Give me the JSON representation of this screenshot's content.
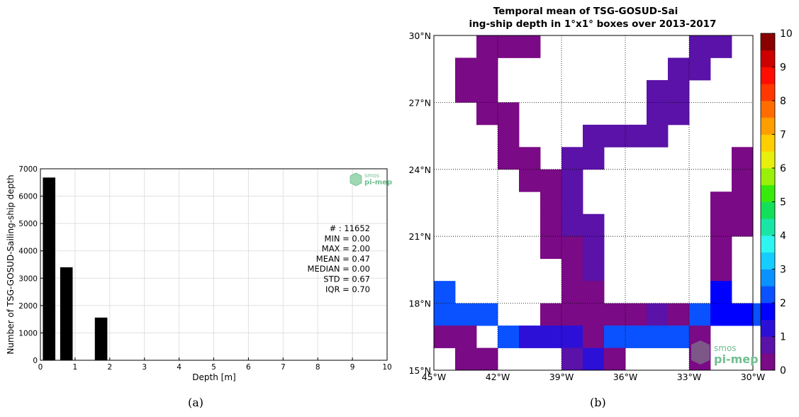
{
  "captions": {
    "a": "(a)",
    "b": "(b)"
  },
  "logo": {
    "line1": "smos",
    "line2": "pi-mep"
  },
  "chart_data": [
    {
      "type": "bar",
      "xlabel": "Depth [m]",
      "ylabel": "Number of TSG-GOSUD-Sailing-ship depth",
      "xlim": [
        0,
        10
      ],
      "ylim": [
        0,
        7000
      ],
      "xticks": [
        0,
        1,
        2,
        3,
        4,
        5,
        6,
        7,
        8,
        9,
        10
      ],
      "yticks": [
        0,
        1000,
        2000,
        3000,
        4000,
        5000,
        6000,
        7000
      ],
      "grid": true,
      "bar_width": 0.36,
      "bars": [
        {
          "x": 0.25,
          "value": 6680
        },
        {
          "x": 0.75,
          "value": 3400
        },
        {
          "x": 1.75,
          "value": 1560
        }
      ],
      "stats": [
        "# : 11652",
        "MIN = 0.00",
        "MAX =  2.00",
        "MEAN = 0.47",
        "MEDIAN = 0.00",
        "STD = 0.67",
        "IQR = 0.70"
      ]
    },
    {
      "type": "heatmap",
      "title": [
        "Temporal mean of TSG-GOSUD-Sai",
        "ing-ship depth in 1°x1° boxes over 2013-2017"
      ],
      "lon_range": [
        -45,
        -30
      ],
      "lat_range": [
        15,
        30
      ],
      "xticks": [
        "45°W",
        "42°W",
        "39°W",
        "36°W",
        "33°W",
        "30°W"
      ],
      "yticks": [
        "15°N",
        "18°N",
        "21°N",
        "24°N",
        "27°N",
        "30°N"
      ],
      "grid": "dotted",
      "colorbar": {
        "min": 0,
        "max": 10,
        "ticks": [
          "0",
          "1",
          "2",
          "3",
          "4",
          "5",
          "6",
          "7",
          "8",
          "9",
          "10"
        ],
        "colors": [
          "#7a0a85",
          "#5a12a8",
          "#2d10d8",
          "#0000ff",
          "#0a52ff",
          "#0a92ff",
          "#16cdff",
          "#2ef5f0",
          "#19e6a6",
          "#13e05a",
          "#38ea0c",
          "#9af00a",
          "#e6f00c",
          "#ffce00",
          "#ff9e00",
          "#ff6d00",
          "#ff3800",
          "#ff0d00",
          "#cc0000",
          "#8a0000"
        ]
      },
      "cells": [
        [
          -43,
          29,
          0.2
        ],
        [
          -42,
          29,
          0.2
        ],
        [
          -41,
          29,
          0.2
        ],
        [
          -33,
          29,
          0.5
        ],
        [
          -32,
          29,
          0.5
        ],
        [
          -44,
          28,
          0.2
        ],
        [
          -43,
          28,
          0.2
        ],
        [
          -34,
          28,
          0.5
        ],
        [
          -33,
          28,
          0.5
        ],
        [
          -44,
          27,
          0.2
        ],
        [
          -43,
          27,
          0.2
        ],
        [
          -35,
          27,
          0.5
        ],
        [
          -34,
          27,
          0.5
        ],
        [
          -43,
          26,
          0.2
        ],
        [
          -42,
          26,
          0.2
        ],
        [
          -35,
          26,
          0.5
        ],
        [
          -34,
          26,
          0.5
        ],
        [
          -42,
          25,
          0.2
        ],
        [
          -38,
          25,
          0.5
        ],
        [
          -37,
          25,
          0.5
        ],
        [
          -36,
          25,
          0.5
        ],
        [
          -35,
          25,
          0.5
        ],
        [
          -42,
          24,
          0.2
        ],
        [
          -41,
          24,
          0.2
        ],
        [
          -39,
          24,
          0.6
        ],
        [
          -38,
          24,
          0.6
        ],
        [
          -31,
          24,
          0.3
        ],
        [
          -41,
          23,
          0.2
        ],
        [
          -40,
          23,
          0.2
        ],
        [
          -39,
          23,
          0.6
        ],
        [
          -31,
          23,
          0.3
        ],
        [
          -40,
          22,
          0.2
        ],
        [
          -39,
          22,
          0.6
        ],
        [
          -32,
          22,
          0.3
        ],
        [
          -31,
          22,
          0.3
        ],
        [
          -40,
          21,
          0.2
        ],
        [
          -39,
          21,
          0.6
        ],
        [
          -38,
          21,
          0.6
        ],
        [
          -32,
          21,
          0.3
        ],
        [
          -31,
          21,
          0.3
        ],
        [
          -40,
          20,
          0.2
        ],
        [
          -39,
          20,
          0.2
        ],
        [
          -38,
          20,
          0.6
        ],
        [
          -32,
          20,
          0.2
        ],
        [
          -39,
          19,
          0.2
        ],
        [
          -38,
          19,
          0.6
        ],
        [
          -32,
          19,
          0.2
        ],
        [
          -39,
          18,
          0.2
        ],
        [
          -38,
          18,
          0.2
        ],
        [
          -32,
          18,
          1.9
        ],
        [
          -45,
          18,
          2.2
        ],
        [
          -45,
          17,
          2.2
        ],
        [
          -44,
          17,
          2.2
        ],
        [
          -43,
          17,
          2.2
        ],
        [
          -40,
          17,
          0.2
        ],
        [
          -39,
          17,
          0.2
        ],
        [
          -38,
          17,
          0.2
        ],
        [
          -37,
          17,
          0.2
        ],
        [
          -36,
          17,
          0.2
        ],
        [
          -35,
          17,
          0.6
        ],
        [
          -34,
          17,
          0.2
        ],
        [
          -33,
          17,
          2.2
        ],
        [
          -32,
          17,
          1.8
        ],
        [
          -31,
          17,
          1.8
        ],
        [
          -30,
          17,
          2.2
        ],
        [
          -45,
          16,
          0.2
        ],
        [
          -44,
          16,
          0.2
        ],
        [
          -42,
          16,
          2.2
        ],
        [
          -41,
          16,
          1.0
        ],
        [
          -40,
          16,
          1.0
        ],
        [
          -39,
          16,
          1.0
        ],
        [
          -38,
          16,
          0.2
        ],
        [
          -37,
          16,
          2.2
        ],
        [
          -36,
          16,
          2.2
        ],
        [
          -35,
          16,
          2.2
        ],
        [
          -34,
          16,
          2.2
        ],
        [
          -33,
          16,
          0.2
        ],
        [
          -44,
          15,
          0.2
        ],
        [
          -43,
          15,
          0.2
        ],
        [
          -39,
          15,
          0.7
        ],
        [
          -38,
          15,
          1.2
        ],
        [
          -37,
          15,
          0.2
        ],
        [
          -33,
          15,
          0.2
        ]
      ]
    }
  ]
}
